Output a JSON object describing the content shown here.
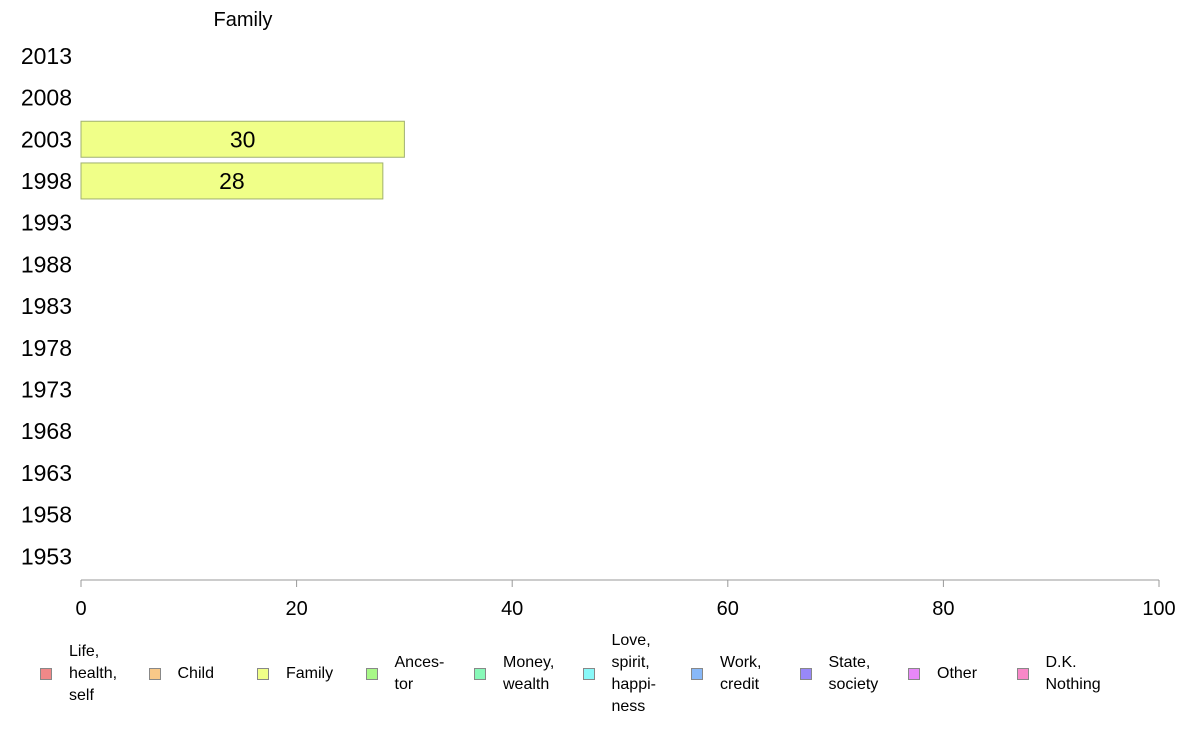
{
  "chart_data": {
    "type": "bar",
    "orientation": "horizontal",
    "title": "Family",
    "categories": [
      "2013",
      "2008",
      "2003",
      "1998",
      "1993",
      "1988",
      "1983",
      "1978",
      "1973",
      "1968",
      "1963",
      "1958",
      "1953"
    ],
    "series": [
      {
        "name": "Family",
        "color": "#f0ff88",
        "values": [
          null,
          null,
          30,
          28,
          null,
          null,
          null,
          null,
          null,
          null,
          null,
          null,
          null
        ]
      }
    ],
    "xlim": [
      0,
      100
    ],
    "xticks": [
      "0",
      "20",
      "40",
      "60",
      "80",
      "100"
    ],
    "grid": false,
    "legend_position": "bottom",
    "legend": [
      {
        "label": "Life,\nhealth,\nself",
        "color": "#f08888"
      },
      {
        "label": "Child",
        "color": "#f8c888"
      },
      {
        "label": "Family",
        "color": "#f0ff88"
      },
      {
        "label": "Ances-\ntor",
        "color": "#a8f888"
      },
      {
        "label": "Money,\nwealth",
        "color": "#88f8b8"
      },
      {
        "label": "Love,\nspirit,\nhappi-\nness",
        "color": "#88f8f8"
      },
      {
        "label": "Work,\ncredit",
        "color": "#88b8f8"
      },
      {
        "label": "State,\nsociety",
        "color": "#9888f8"
      },
      {
        "label": "Other",
        "color": "#e888f8"
      },
      {
        "label": "D.K.\nNothing",
        "color": "#f888c8"
      }
    ]
  }
}
